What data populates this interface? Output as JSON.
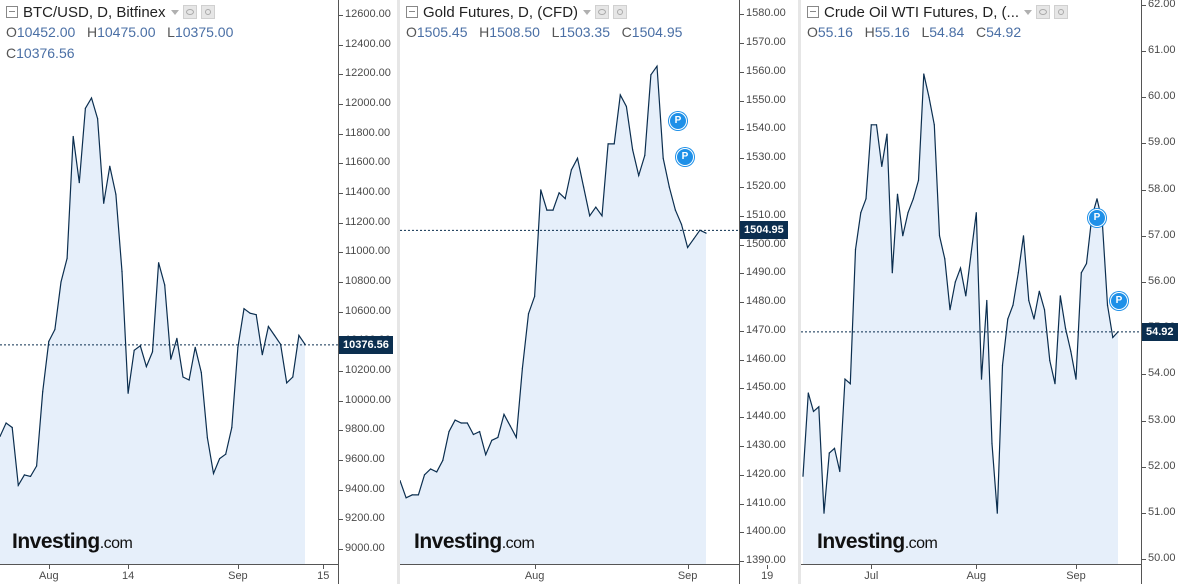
{
  "panels": [
    {
      "title": "BTC/USD, D, Bitfinex",
      "ohlc": {
        "o_key": "O",
        "o": "10452.00",
        "h_key": "H",
        "h": "10475.00",
        "l_key": "L",
        "l": "10375.00",
        "c_key": "C",
        "c": "10376.56"
      },
      "last_price_label": "10376.56",
      "logo_main": "Investing",
      "logo_suffix": ".com",
      "badges": [],
      "colors": {
        "line": "#0b2e4f",
        "fill": "#e6effa"
      }
    },
    {
      "title": "Gold Futures, D, (CFD)",
      "ohlc": {
        "o_key": "O",
        "o": "1505.45",
        "h_key": "H",
        "h": "1508.50",
        "l_key": "L",
        "l": "1503.35",
        "c_key": "C",
        "c": "1504.95"
      },
      "last_price_label": "1504.95",
      "logo_main": "Investing",
      "logo_suffix": ".com",
      "badges": [
        "P",
        "P"
      ],
      "colors": {
        "line": "#0b2e4f",
        "fill": "#e6effa"
      }
    },
    {
      "title": "Crude Oil WTI Futures, D, (...",
      "ohlc": {
        "o_key": "O",
        "o": "55.16",
        "h_key": "H",
        "h": "55.16",
        "l_key": "L",
        "l": "54.84",
        "c_key": "C",
        "c": "54.92"
      },
      "last_price_label": "54.92",
      "logo_main": "Investing",
      "logo_suffix": ".com",
      "badges": [
        "P",
        "P"
      ],
      "colors": {
        "line": "#0b2e4f",
        "fill": "#e6effa"
      }
    }
  ],
  "chart_data": [
    {
      "type": "area",
      "title": "BTC/USD, D, Bitfinex",
      "ylim": [
        8900,
        12700
      ],
      "yticks": [
        9000,
        9200,
        9400,
        9600,
        9800,
        10000,
        10200,
        10400,
        10600,
        10800,
        11000,
        11200,
        11400,
        11600,
        11800,
        12000,
        12200,
        12400,
        12600
      ],
      "ytick_labels": [
        "9000.00",
        "9200.00",
        "9400.00",
        "9600.00",
        "9800.00",
        "10000.00",
        "10200.00",
        "10400.00",
        "10600.00",
        "10800.00",
        "11000.00",
        "11200.00",
        "11400.00",
        "11600.00",
        "11800.00",
        "12000.00",
        "12200.00",
        "12400.00",
        "12600.00"
      ],
      "xticks": [
        {
          "label": "Aug",
          "i": 8
        },
        {
          "label": "14",
          "i": 21
        },
        {
          "label": "Sep",
          "i": 39
        },
        {
          "label": "15",
          "i": 53
        }
      ],
      "last": 10376.56,
      "values": [
        9760,
        9850,
        9820,
        9430,
        9500,
        9490,
        9560,
        10060,
        10400,
        10480,
        10800,
        10960,
        11780,
        11470,
        11970,
        12040,
        11900,
        11330,
        11580,
        11390,
        10870,
        10050,
        10340,
        10370,
        10230,
        10330,
        10930,
        10780,
        10280,
        10420,
        10160,
        10140,
        10360,
        10190,
        9750,
        9510,
        9610,
        9640,
        9820,
        10360,
        10620,
        10590,
        10580,
        10310,
        10500,
        10440,
        10380,
        10120,
        10160,
        10440,
        10380
      ]
    },
    {
      "type": "area",
      "title": "Gold Futures, D, (CFD)",
      "ylim": [
        1389,
        1585
      ],
      "yticks": [
        1390,
        1400,
        1410,
        1420,
        1430,
        1440,
        1450,
        1460,
        1470,
        1480,
        1490,
        1500,
        1510,
        1520,
        1530,
        1540,
        1550,
        1560,
        1570,
        1580
      ],
      "ytick_labels": [
        "1390.00",
        "1400.00",
        "1410.00",
        "1420.00",
        "1430.00",
        "1440.00",
        "1450.00",
        "1460.00",
        "1470.00",
        "1480.00",
        "1490.00",
        "1500.00",
        "1510.00",
        "1520.00",
        "1530.00",
        "1540.00",
        "1550.00",
        "1560.00",
        "1570.00",
        "1580.00"
      ],
      "xticks": [
        {
          "label": "Aug",
          "i": 22
        },
        {
          "label": "Sep",
          "i": 47
        },
        {
          "label": "19",
          "i": 60
        }
      ],
      "last": 1504.95,
      "values": [
        1418,
        1412,
        1413,
        1413,
        1420,
        1422,
        1421,
        1425,
        1435,
        1439,
        1438,
        1438,
        1434,
        1435,
        1427,
        1432,
        1433,
        1441,
        1437,
        1433,
        1457,
        1476,
        1482,
        1519,
        1512,
        1512,
        1518,
        1516,
        1526,
        1530,
        1520,
        1510,
        1513,
        1510,
        1535,
        1535,
        1552,
        1548,
        1533,
        1524,
        1531,
        1559,
        1562,
        1530,
        1520,
        1512,
        1507,
        1499,
        1502,
        1505,
        1504
      ]
    },
    {
      "type": "area",
      "title": "Crude Oil WTI Futures, D, (...",
      "ylim": [
        49.9,
        62.1
      ],
      "yticks": [
        50,
        51,
        52,
        53,
        54,
        55,
        56,
        57,
        58,
        59,
        60,
        61,
        62
      ],
      "ytick_labels": [
        "50.00",
        "51.00",
        "52.00",
        "53.00",
        "54.00",
        "55.00",
        "56.00",
        "57.00",
        "58.00",
        "59.00",
        "60.00",
        "61.00",
        "62.00"
      ],
      "xticks": [
        {
          "label": "Jul",
          "i": 13
        },
        {
          "label": "Aug",
          "i": 33
        },
        {
          "label": "Sep",
          "i": 52
        }
      ],
      "last": 54.92,
      "values": [
        51.8,
        53.6,
        53.2,
        53.3,
        51.0,
        52.3,
        52.4,
        51.9,
        53.9,
        53.8,
        56.7,
        57.5,
        57.8,
        59.4,
        59.4,
        58.5,
        59.2,
        56.2,
        57.9,
        57.0,
        57.5,
        57.8,
        58.2,
        60.5,
        60.0,
        59.4,
        57.0,
        56.5,
        55.4,
        56.0,
        56.3,
        55.7,
        56.6,
        57.5,
        53.9,
        55.6,
        52.5,
        51.0,
        54.2,
        55.2,
        55.5,
        56.2,
        57.0,
        55.6,
        55.2,
        55.8,
        55.4,
        54.3,
        53.8,
        55.7,
        55.0,
        54.5,
        53.9,
        56.2,
        56.4,
        57.4,
        57.8,
        57.3,
        55.5,
        54.8,
        54.92
      ]
    }
  ]
}
